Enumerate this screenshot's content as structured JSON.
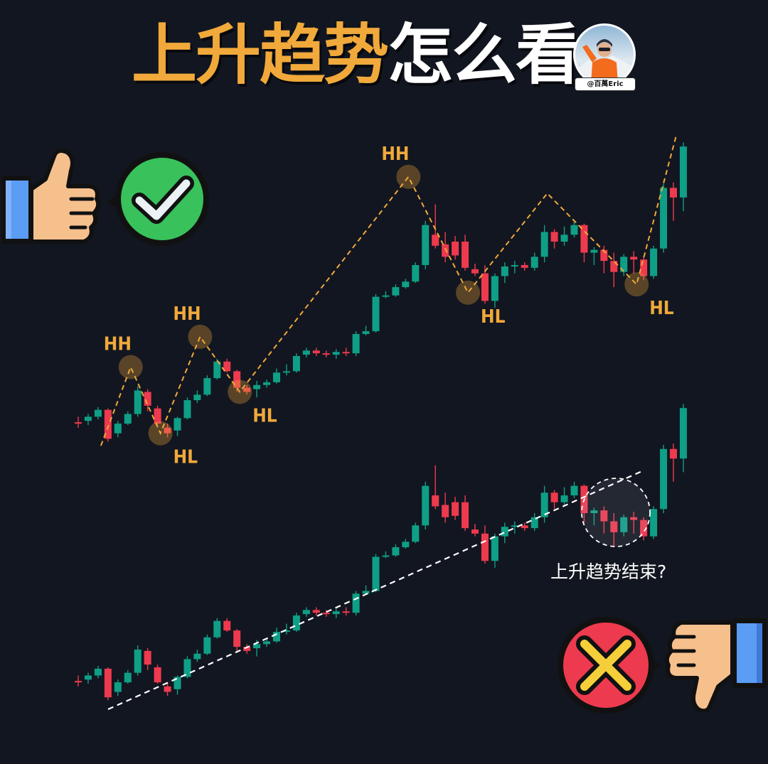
{
  "title": {
    "highlight": "上升趋势",
    "rest": "怎么看"
  },
  "avatar": {
    "tag": "@百萬Eric"
  },
  "caption": "上升趋势结束?",
  "colors": {
    "up": "#0f9f86",
    "down": "#ee3a4e",
    "accent": "#f0a93a",
    "background": "#121620"
  },
  "icons": {
    "good": [
      "thumbs-up-icon",
      "check-badge-icon"
    ],
    "bad": [
      "thumbs-down-icon",
      "cross-badge-icon"
    ]
  },
  "chart_data": [
    {
      "type": "candlestick",
      "title": "",
      "swing_labels": [
        "HH",
        "HL",
        "HH",
        "HL",
        "HH",
        "HL",
        "HL"
      ],
      "candles": [
        {
          "o": 2,
          "h": 6,
          "l": -2,
          "c": 1
        },
        {
          "o": 3,
          "h": 8,
          "l": 0,
          "c": 6
        },
        {
          "o": 6,
          "h": 13,
          "l": 4,
          "c": 11
        },
        {
          "o": 11,
          "h": 12,
          "l": -12,
          "c": -10
        },
        {
          "o": -6,
          "h": 3,
          "l": -9,
          "c": 1
        },
        {
          "o": 1,
          "h": 10,
          "l": 0,
          "c": 8
        },
        {
          "o": 8,
          "h": 28,
          "l": 6,
          "c": 25
        },
        {
          "o": 24,
          "h": 26,
          "l": 10,
          "c": 14
        },
        {
          "o": 12,
          "h": 14,
          "l": 0,
          "c": 1
        },
        {
          "o": -2,
          "h": 1,
          "l": -9,
          "c": -6
        },
        {
          "o": -4,
          "h": 6,
          "l": -8,
          "c": 5
        },
        {
          "o": 5,
          "h": 20,
          "l": 4,
          "c": 18
        },
        {
          "o": 18,
          "h": 25,
          "l": 16,
          "c": 22
        },
        {
          "o": 22,
          "h": 36,
          "l": 21,
          "c": 34
        },
        {
          "o": 34,
          "h": 48,
          "l": 33,
          "c": 46
        },
        {
          "o": 46,
          "h": 48,
          "l": 38,
          "c": 39
        },
        {
          "o": 39,
          "h": 40,
          "l": 24,
          "c": 27
        },
        {
          "o": 27,
          "h": 29,
          "l": 22,
          "c": 24
        },
        {
          "o": 26,
          "h": 32,
          "l": 20,
          "c": 29
        },
        {
          "o": 29,
          "h": 33,
          "l": 27,
          "c": 31
        },
        {
          "o": 31,
          "h": 41,
          "l": 30,
          "c": 38
        },
        {
          "o": 38,
          "h": 44,
          "l": 36,
          "c": 39
        },
        {
          "o": 39,
          "h": 52,
          "l": 38,
          "c": 50
        },
        {
          "o": 51,
          "h": 56,
          "l": 49,
          "c": 54
        },
        {
          "o": 54,
          "h": 56,
          "l": 50,
          "c": 52
        },
        {
          "o": 52,
          "h": 54,
          "l": 49,
          "c": 51
        },
        {
          "o": 51,
          "h": 55,
          "l": 48,
          "c": 53
        },
        {
          "o": 53,
          "h": 56,
          "l": 50,
          "c": 52
        },
        {
          "o": 52,
          "h": 68,
          "l": 50,
          "c": 66
        },
        {
          "o": 66,
          "h": 72,
          "l": 65,
          "c": 68
        },
        {
          "o": 68,
          "h": 95,
          "l": 67,
          "c": 93
        },
        {
          "o": 93,
          "h": 97,
          "l": 92,
          "c": 94
        },
        {
          "o": 94,
          "h": 102,
          "l": 93,
          "c": 100
        },
        {
          "o": 100,
          "h": 106,
          "l": 99,
          "c": 104
        },
        {
          "o": 104,
          "h": 118,
          "l": 103,
          "c": 116
        },
        {
          "o": 116,
          "h": 148,
          "l": 113,
          "c": 145
        },
        {
          "o": 138,
          "h": 160,
          "l": 128,
          "c": 130
        },
        {
          "o": 131,
          "h": 140,
          "l": 118,
          "c": 122
        },
        {
          "o": 133,
          "h": 137,
          "l": 120,
          "c": 123
        },
        {
          "o": 133,
          "h": 138,
          "l": 112,
          "c": 114
        },
        {
          "o": 113,
          "h": 117,
          "l": 108,
          "c": 110
        },
        {
          "o": 110,
          "h": 116,
          "l": 88,
          "c": 90
        },
        {
          "o": 90,
          "h": 110,
          "l": 85,
          "c": 108
        },
        {
          "o": 108,
          "h": 118,
          "l": 103,
          "c": 115
        },
        {
          "o": 115,
          "h": 119,
          "l": 110,
          "c": 116
        },
        {
          "o": 116,
          "h": 118,
          "l": 112,
          "c": 114
        },
        {
          "o": 114,
          "h": 125,
          "l": 112,
          "c": 122
        },
        {
          "o": 122,
          "h": 145,
          "l": 118,
          "c": 140
        },
        {
          "o": 140,
          "h": 142,
          "l": 128,
          "c": 133
        },
        {
          "o": 133,
          "h": 144,
          "l": 130,
          "c": 138
        },
        {
          "o": 138,
          "h": 148,
          "l": 136,
          "c": 145
        },
        {
          "o": 145,
          "h": 146,
          "l": 118,
          "c": 125
        },
        {
          "o": 125,
          "h": 129,
          "l": 116,
          "c": 127
        },
        {
          "o": 127,
          "h": 130,
          "l": 110,
          "c": 119
        },
        {
          "o": 119,
          "h": 125,
          "l": 100,
          "c": 111
        },
        {
          "o": 111,
          "h": 124,
          "l": 108,
          "c": 122
        },
        {
          "o": 122,
          "h": 126,
          "l": 110,
          "c": 120
        },
        {
          "o": 120,
          "h": 122,
          "l": 105,
          "c": 108
        },
        {
          "o": 108,
          "h": 130,
          "l": 106,
          "c": 128
        },
        {
          "o": 128,
          "h": 175,
          "l": 125,
          "c": 172
        },
        {
          "o": 172,
          "h": 176,
          "l": 148,
          "c": 165
        },
        {
          "o": 165,
          "h": 205,
          "l": 155,
          "c": 202
        }
      ]
    },
    {
      "type": "candlestick",
      "title": "",
      "annotations": [
        "上升趋势结束?"
      ]
    }
  ]
}
